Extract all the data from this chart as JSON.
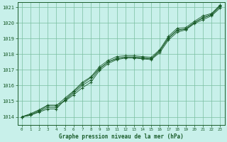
{
  "xlabel": "Graphe pression niveau de la mer (hPa)",
  "bg_color": "#c8f0ea",
  "plot_bg_color": "#c8f0ea",
  "grid_color": "#7abfa0",
  "line_color": "#1a5c2a",
  "border_color": "#1a5c2a",
  "x_min": -0.5,
  "x_max": 23.5,
  "y_min": 1013.5,
  "y_max": 1021.3,
  "yticks": [
    1014,
    1015,
    1016,
    1017,
    1018,
    1019,
    1020,
    1021
  ],
  "xticks": [
    0,
    1,
    2,
    3,
    4,
    5,
    6,
    7,
    8,
    9,
    10,
    11,
    12,
    13,
    14,
    15,
    16,
    17,
    18,
    19,
    20,
    21,
    22,
    23
  ],
  "line1_x": [
    0,
    1,
    2,
    3,
    4,
    5,
    6,
    7,
    8,
    9,
    10,
    11,
    12,
    13,
    14,
    15,
    16,
    17,
    18,
    19,
    20,
    21,
    22,
    23
  ],
  "line1_y": [
    1014.0,
    1014.1,
    1014.3,
    1014.5,
    1014.5,
    1015.1,
    1015.6,
    1016.1,
    1016.5,
    1017.1,
    1017.5,
    1017.75,
    1017.8,
    1017.8,
    1017.75,
    1017.7,
    1018.2,
    1019.0,
    1019.5,
    1019.6,
    1020.0,
    1020.3,
    1020.5,
    1021.05
  ],
  "line2_x": [
    0,
    1,
    2,
    3,
    4,
    5,
    6,
    7,
    8,
    9,
    10,
    11,
    12,
    13,
    14,
    15,
    16,
    17,
    18,
    19,
    20,
    21,
    22,
    23
  ],
  "line2_y": [
    1014.0,
    1014.15,
    1014.4,
    1014.7,
    1014.7,
    1015.2,
    1015.65,
    1016.2,
    1016.55,
    1017.2,
    1017.6,
    1017.85,
    1017.9,
    1017.9,
    1017.85,
    1017.8,
    1018.3,
    1019.15,
    1019.65,
    1019.7,
    1020.1,
    1020.45,
    1020.6,
    1021.15
  ],
  "line3_x": [
    0,
    1,
    2,
    3,
    4,
    5,
    6,
    7,
    8,
    9,
    10,
    11,
    12,
    13,
    14,
    15,
    16,
    17,
    18,
    19,
    20,
    21,
    22,
    23
  ],
  "line3_y": [
    1014.0,
    1014.2,
    1014.45,
    1014.75,
    1014.75,
    1015.0,
    1015.4,
    1015.85,
    1016.2,
    1016.95,
    1017.4,
    1017.65,
    1017.75,
    1017.75,
    1017.7,
    1017.65,
    1018.1,
    1018.9,
    1019.4,
    1019.55,
    1019.95,
    1020.2,
    1020.45,
    1020.95
  ],
  "line4_x": [
    0,
    1,
    2,
    3,
    4,
    5,
    6,
    7,
    8,
    9,
    10,
    11,
    12,
    13,
    14,
    15,
    16,
    17,
    18,
    19,
    20,
    21,
    22,
    23
  ],
  "line4_y": [
    1014.0,
    1014.1,
    1014.35,
    1014.6,
    1014.6,
    1015.05,
    1015.5,
    1016.0,
    1016.35,
    1017.05,
    1017.5,
    1017.7,
    1017.82,
    1017.82,
    1017.77,
    1017.72,
    1018.22,
    1019.05,
    1019.55,
    1019.62,
    1020.02,
    1020.35,
    1020.55,
    1021.1
  ],
  "figsize": [
    3.2,
    2.0
  ],
  "dpi": 100
}
